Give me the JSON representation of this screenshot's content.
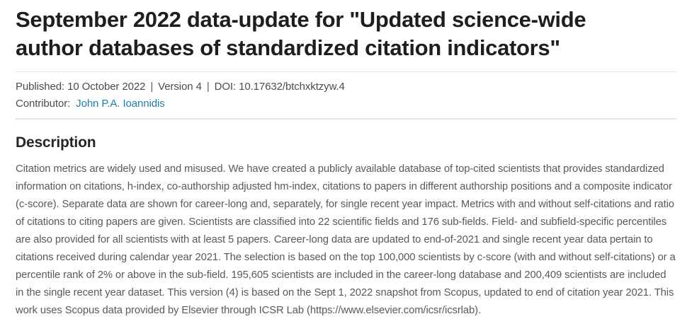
{
  "header": {
    "title": "September 2022 data-update for \"Updated science-wide author databases of standardized citation indicators\""
  },
  "meta": {
    "published": "Published: 10 October 2022",
    "separator": "|",
    "version": "Version 4",
    "doi": "DOI: 10.17632/btchxktzyw.4"
  },
  "contributor": {
    "label": "Contributor:",
    "name": "John P.A. Ioannidis"
  },
  "description": {
    "heading": "Description",
    "body": "Citation metrics are widely used and misused. We have created a publicly available database of top-cited scientists that provides standardized information on citations, h-index, co-authorship adjusted hm-index, citations to papers in different authorship positions and a composite indicator (c-score). Separate data are shown for career-long and, separately, for single recent year impact. Metrics with and without self-citations and ratio of citations to citing papers are given. Scientists are classified into 22 scientific fields and 176 sub-fields. Field- and subfield-specific percentiles are also provided for all scientists with at least 5 papers. Career-long data are updated to end-of-2021 and single recent year data pertain to citations received during calendar year 2021. The selection is based on the top 100,000 scientists by c-score (with and without self-citations) or a percentile rank of 2% or above in the sub-field. 195,605 scientists are included in the career-long database and 200,409 scientists are included in the single recent year dataset. This version (4) is based on the Sept 1, 2022 snapshot from Scopus, updated to end of citation year 2021. This work uses Scopus data provided by Elsevier through ICSR Lab (https://www.elsevier.com/icsr/icsrlab)."
  },
  "colors": {
    "link": "#1d7fad",
    "title_text": "#1e1e1e",
    "meta_text": "#4c4c4c",
    "body_text": "#595959",
    "divider": "#e8e8e8"
  }
}
